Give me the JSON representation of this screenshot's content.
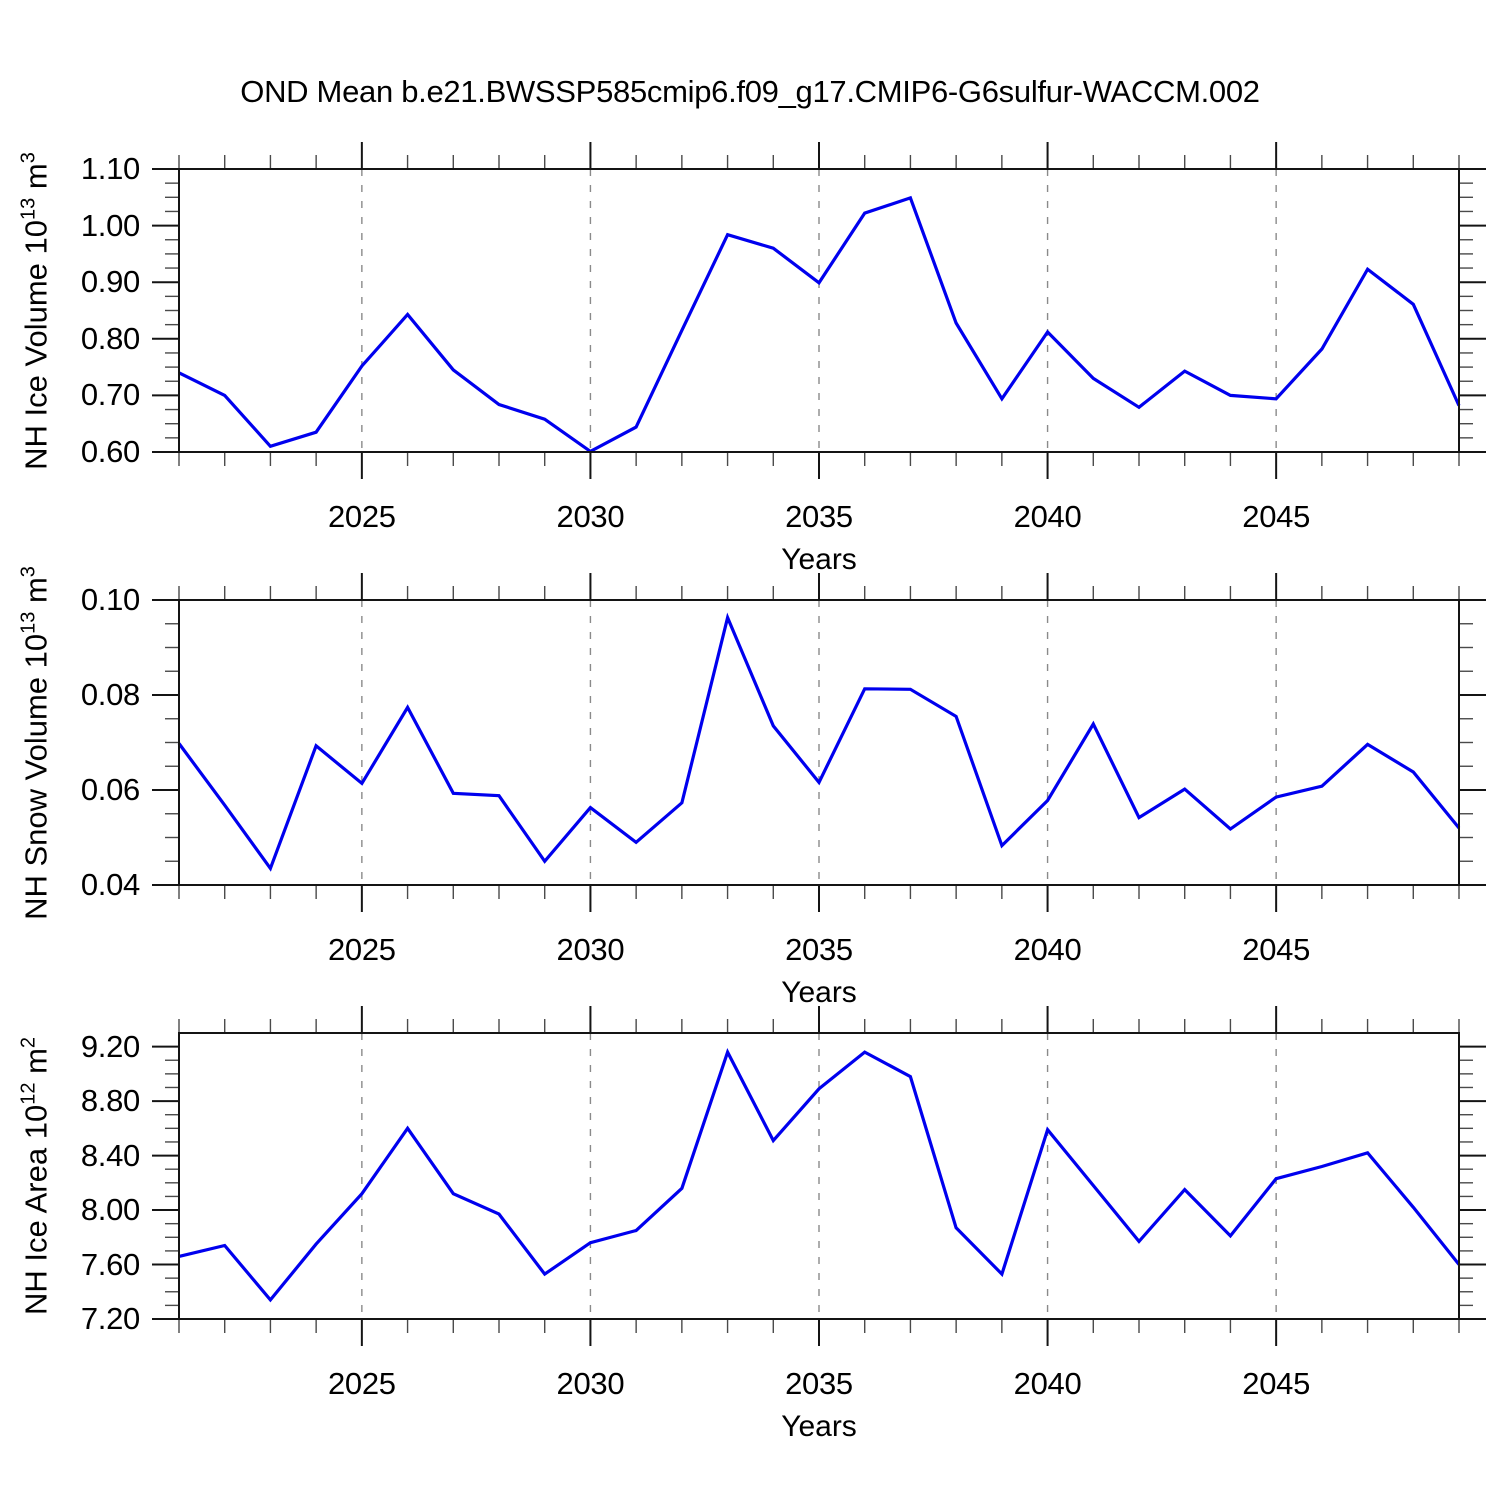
{
  "title": "OND Mean b.e21.BWSSP585cmip6.f09_g17.CMIP6-G6sulfur-WACCM.002",
  "colors": {
    "line": "#0000EE",
    "grid": "#8A8A8A",
    "axis": "#141414",
    "minor_tick": "#4A4A4A",
    "background": "#FFFFFF",
    "text": "#000000"
  },
  "chart_data": [
    {
      "type": "line",
      "panel": "top",
      "ylabel_base": "NH Ice Volume 10",
      "ylabel_exp": "13",
      "ylabel_unit": " m",
      "ylabel_unit_exp": "3",
      "xlabel": "Years",
      "x_start": 2021,
      "x_end": 2049,
      "x": [
        2021,
        2022,
        2023,
        2024,
        2025,
        2026,
        2027,
        2028,
        2029,
        2030,
        2031,
        2032,
        2033,
        2034,
        2035,
        2036,
        2037,
        2038,
        2039,
        2040,
        2041,
        2042,
        2043,
        2044,
        2045,
        2046,
        2047,
        2048,
        2049
      ],
      "values": [
        0.74,
        0.7,
        0.61,
        0.635,
        0.752,
        0.843,
        0.745,
        0.684,
        0.658,
        0.601,
        0.644,
        0.815,
        0.984,
        0.96,
        0.899,
        1.022,
        1.049,
        0.828,
        0.694,
        0.812,
        0.73,
        0.679,
        0.743,
        0.7,
        0.694,
        0.782,
        0.923,
        0.861,
        0.682
      ],
      "ylim": [
        0.6,
        1.1
      ],
      "yticks": [
        0.6,
        0.7,
        0.8,
        0.9,
        1.0,
        1.1
      ],
      "ytick_labels": [
        "0.60",
        "0.70",
        "0.80",
        "0.90",
        "1.00",
        "1.10"
      ],
      "yminor_step": 0.025,
      "xticks": [
        2025,
        2030,
        2035,
        2040,
        2045
      ],
      "xtick_labels": [
        "2025",
        "2030",
        "2035",
        "2040",
        "2045"
      ],
      "xminor_step": 1,
      "grid": {
        "vertical_at": [
          2025,
          2030,
          2035,
          2040,
          2045
        ],
        "style": "dashed"
      }
    },
    {
      "type": "line",
      "panel": "middle",
      "ylabel_base": "NH Snow Volume 10",
      "ylabel_exp": "13",
      "ylabel_unit": " m",
      "ylabel_unit_exp": "3",
      "xlabel": "Years",
      "x_start": 2021,
      "x_end": 2049,
      "x": [
        2021,
        2022,
        2023,
        2024,
        2025,
        2026,
        2027,
        2028,
        2029,
        2030,
        2031,
        2032,
        2033,
        2034,
        2035,
        2036,
        2037,
        2038,
        2039,
        2040,
        2041,
        2042,
        2043,
        2044,
        2045,
        2046,
        2047,
        2048,
        2049
      ],
      "values": [
        0.0698,
        0.0568,
        0.0435,
        0.0693,
        0.0614,
        0.0774,
        0.0593,
        0.0588,
        0.045,
        0.0563,
        0.049,
        0.0573,
        0.0963,
        0.0735,
        0.0616,
        0.0813,
        0.0812,
        0.0755,
        0.0483,
        0.0578,
        0.0739,
        0.0542,
        0.0602,
        0.0518,
        0.0585,
        0.0608,
        0.0696,
        0.0638,
        0.052
      ],
      "ylim": [
        0.04,
        0.1
      ],
      "yticks": [
        0.04,
        0.06,
        0.08,
        0.1
      ],
      "ytick_labels": [
        "0.04",
        "0.06",
        "0.08",
        "0.10"
      ],
      "yminor_step": 0.005,
      "xticks": [
        2025,
        2030,
        2035,
        2040,
        2045
      ],
      "xtick_labels": [
        "2025",
        "2030",
        "2035",
        "2040",
        "2045"
      ],
      "xminor_step": 1,
      "grid": {
        "vertical_at": [
          2025,
          2030,
          2035,
          2040,
          2045
        ],
        "style": "dashed"
      }
    },
    {
      "type": "line",
      "panel": "bottom",
      "ylabel_base": "NH Ice Area 10",
      "ylabel_exp": "12",
      "ylabel_unit": " m",
      "ylabel_unit_exp": "2",
      "xlabel": "Years",
      "x_start": 2021,
      "x_end": 2049,
      "x": [
        2021,
        2022,
        2023,
        2024,
        2025,
        2026,
        2027,
        2028,
        2029,
        2030,
        2031,
        2032,
        2033,
        2034,
        2035,
        2036,
        2037,
        2038,
        2039,
        2040,
        2041,
        2042,
        2043,
        2044,
        2045,
        2046,
        2047,
        2048,
        2049
      ],
      "values": [
        7.66,
        7.74,
        7.34,
        7.75,
        8.12,
        8.6,
        8.12,
        7.97,
        7.53,
        7.76,
        7.85,
        8.16,
        9.16,
        8.51,
        8.89,
        9.16,
        8.98,
        7.87,
        7.53,
        8.59,
        8.18,
        7.77,
        8.15,
        7.81,
        8.23,
        8.32,
        8.42,
        8.02,
        7.6
      ],
      "ylim": [
        7.2,
        9.3
      ],
      "yticks": [
        7.2,
        7.6,
        8.0,
        8.4,
        8.8,
        9.2
      ],
      "ytick_labels": [
        "7.20",
        "7.60",
        "8.00",
        "8.40",
        "8.80",
        "9.20"
      ],
      "yminor_step": 0.1,
      "xticks": [
        2025,
        2030,
        2035,
        2040,
        2045
      ],
      "xtick_labels": [
        "2025",
        "2030",
        "2035",
        "2040",
        "2045"
      ],
      "xminor_step": 1,
      "grid": {
        "vertical_at": [
          2025,
          2030,
          2035,
          2040,
          2045
        ],
        "style": "dashed"
      }
    }
  ]
}
